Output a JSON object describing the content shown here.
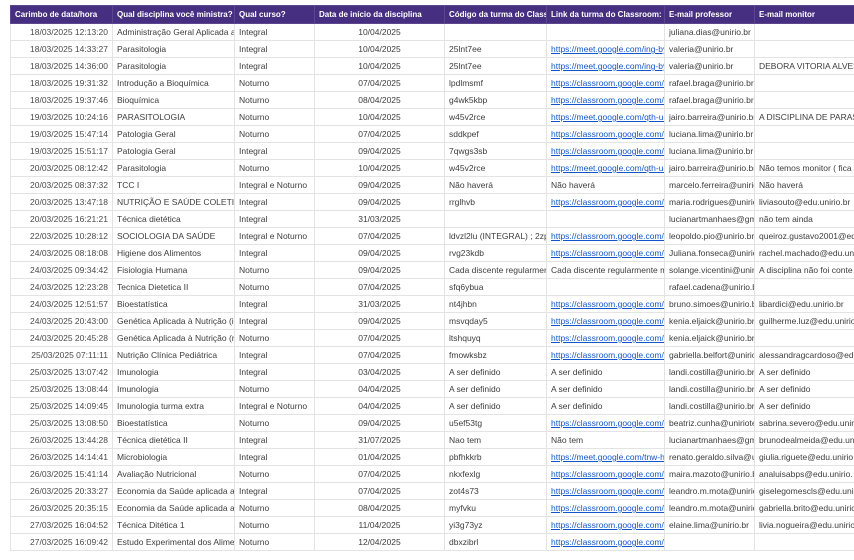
{
  "colors": {
    "header_bg": "#462f80",
    "header_text": "#ffffff",
    "grid_line": "#e3e3e3",
    "body_text": "#3d3d3d",
    "link_text": "#1155cc"
  },
  "table": {
    "columns": [
      "Carimbo de data/hora",
      "Qual disciplina você ministra?",
      "Qual curso?",
      "Data de início da disciplina",
      "Código da turma do Classroom:",
      "Link da turma do Classroom:",
      "E-mail professor",
      "E-mail monitor"
    ],
    "rows": [
      [
        "18/03/2025 12:13:20",
        "Administração Geral Aplicada a Nutr",
        "Integral",
        "10/04/2025",
        "",
        "",
        "juliana.dias@unirio.br",
        ""
      ],
      [
        "18/03/2025 14:33:27",
        "Parasitologia",
        "Integral",
        "10/04/2025",
        "25lnt7ee",
        "https://meet.google.com/ing-bysp-",
        "valeria@unirio.br",
        ""
      ],
      [
        "18/03/2025 14:36:00",
        "Parasitologia",
        "Integral",
        "10/04/2025",
        "25lnt7ee",
        "https://meet.google.com/ing-bysp-",
        "valeria@unirio.br",
        "DEBORA VITORIA ALVES"
      ],
      [
        "18/03/2025 19:31:32",
        "Introdução a Bioquímica",
        "Noturno",
        "07/04/2025",
        "lpdlmsmf",
        "https://classroom.google.com/c/N",
        "rafael.braga@unirio.br",
        ""
      ],
      [
        "18/03/2025 19:37:46",
        "Bioquímica",
        "Noturno",
        "08/04/2025",
        "g4wk5kbp",
        "https://classroom.google.com/c/N",
        "rafael.braga@unirio.br",
        ""
      ],
      [
        "19/03/2025 10:24:16",
        "PARASITOLOGIA",
        "Noturno",
        "10/04/2025",
        "w45v2rce",
        "https://meet.google.com/qth-uqun",
        "jairo.barreira@unirio.br",
        "A DISCIPLINA DE PARAS"
      ],
      [
        "19/03/2025 15:47:14",
        "Patologia Geral",
        "Noturno",
        "07/04/2025",
        "sddkpef",
        "https://classroom.google.com/c/N",
        "luciana.lima@unirio.br",
        ""
      ],
      [
        "19/03/2025 15:51:17",
        "Patologia Geral",
        "Integral",
        "09/04/2025",
        "7qwgs3sb",
        "https://classroom.google.com/c/N",
        "luciana.lima@unirio.br",
        ""
      ],
      [
        "20/03/2025 08:12:42",
        "Parasitologia",
        "Noturno",
        "10/04/2025",
        "w45v2rce",
        "https://meet.google.com/qth-uqun",
        "jairo.barreira@unirio.br",
        "Não temos monitor ( fica"
      ],
      [
        "20/03/2025 08:37:32",
        "TCC I",
        "Integral e Noturno",
        "09/04/2025",
        "Não haverá",
        "Não haverá",
        "marcelo.ferreira@unirio.b",
        "Não haverá"
      ],
      [
        "20/03/2025 13:47:18",
        "NUTRIÇÃO E SAÚDE COLETIVA",
        "Integral",
        "09/04/2025",
        "rrglhvb",
        "https://classroom.google.com/c/N",
        "maria.rodrigues@unirio.b",
        "liviasouto@edu.unirio.br"
      ],
      [
        "20/03/2025 16:21:21",
        "Técnica dietética",
        "Integral",
        "31/03/2025",
        "",
        "",
        "lucianartmanhaes@gma",
        "não tem ainda"
      ],
      [
        "22/03/2025 10:28:12",
        "SOCIOLOGIA DA SAÚDE",
        "Integral e Noturno",
        "07/04/2025",
        "ldvzl2lu (INTEGRAL) ; 2zplrv6s (NOTUF",
        "https://classroom.google.com/c/N",
        "leopoldo.pio@unirio.br",
        "queiroz.gustavo2001@ed"
      ],
      [
        "24/03/2025 08:18:08",
        "Higiene dos Alimentos",
        "Integral",
        "09/04/2025",
        "rvg23kdb",
        "https://classroom.google.com/c/N",
        "Juliana.fonseca@unirio.t",
        "rachel.machado@edu.uni"
      ],
      [
        "24/03/2025 09:34:42",
        "Fisiologia Humana",
        "Noturno",
        "09/04/2025",
        "Cada discente regularmente matricula",
        "Cada discente regularmente matric",
        "solange.vicentini@unirio",
        "A disciplina não foi conte"
      ],
      [
        "24/03/2025 12:23:28",
        "Tecnica Dietetica II",
        "Noturno",
        "07/04/2025",
        "sfq6ybua",
        "",
        "rafael.cadena@unirio.br",
        ""
      ],
      [
        "24/03/2025 12:51:57",
        "Bioestatística",
        "Integral",
        "31/03/2025",
        "nt4jhbn",
        "https://classroom.google.com/c/N",
        "bruno.simoes@unirio.br",
        "libardici@edu.unirio.br"
      ],
      [
        "24/03/2025 20:43:00",
        "Genética Aplicada à Nutrição (integ",
        "Integral",
        "09/04/2025",
        "msvqday5",
        "https://classroom.google.com/c/N",
        "kenia.eljaick@unirio.br",
        "guilherme.luz@edu.unirio"
      ],
      [
        "24/03/2025 20:45:28",
        "Genética Aplicada à Nutrição (notur",
        "Noturno",
        "07/04/2025",
        "ltshquyq",
        "https://classroom.google.com/c/N",
        "kenia.eljaick@unirio.br",
        ""
      ],
      [
        "25/03/2025 07:11:11",
        "Nutrição Clínica Pediátrica",
        "Integral",
        "07/04/2025",
        "fmowksbz",
        "https://classroom.google.com/c/N",
        "gabriella.belfort@unirio.br",
        "alessandragcardoso@ed"
      ],
      [
        "25/03/2025 13:07:42",
        "Imunologia",
        "Integral",
        "03/04/2025",
        "A ser definido",
        "A ser definido",
        "landi.costilla@unirio.br",
        "A ser definido"
      ],
      [
        "25/03/2025 13:08:44",
        "Imunologia",
        "Noturno",
        "04/04/2025",
        "A ser definido",
        "A ser definido",
        "landi.costilla@unirio.br",
        "A ser definido"
      ],
      [
        "25/03/2025 14:09:45",
        "Imunologia  turma extra",
        "Integral e Noturno",
        "04/04/2025",
        "A ser definido",
        "A ser definido",
        "landi.costilla@unirio.br",
        "A ser definido"
      ],
      [
        "25/03/2025 13:08:50",
        "Bioestatística",
        "Noturno",
        "09/04/2025",
        "u5ef53tg",
        "https://classroom.google.com/c/N",
        "beatriz.cunha@uniriotec.",
        "sabrina.severo@edu.unir"
      ],
      [
        "26/03/2025 13:44:28",
        "Técnica dietética II",
        "Integral",
        "31/07/2025",
        "Nao tem",
        "Não tem",
        "lucianartmanhaes@gma",
        "brunodealmeida@edu.un"
      ],
      [
        "26/03/2025 14:14:41",
        "Microbiologia",
        "Integral",
        "01/04/2025",
        "pbfhkkrb",
        "https://meet.google.com/tnw-hecn",
        "renato.geraldo.silva@uni",
        "giulia.riguete@edu.unirio"
      ],
      [
        "26/03/2025 15:41:14",
        "Avaliação Nutricional",
        "Noturno",
        "07/04/2025",
        "nkxfexlg",
        "https://classroom.google.com/c/N",
        "maira.mazoto@unirio.br",
        "analuisabps@edu.unirio."
      ],
      [
        "26/03/2025 20:33:27",
        "Economia da Saúde aplicada a Nutri",
        "Integral",
        "07/04/2025",
        "zot4s73",
        "https://classroom.google.com/c/N",
        "leandro.m.mota@unirio.l",
        "giselegomescls@edu.uni"
      ],
      [
        "26/03/2025 20:35:15",
        "Economia da Saúde aplicada a Nutr",
        "Noturno",
        "08/04/2025",
        "myfvku",
        "https://classroom.google.com/c/N",
        "leandro.m.mota@unirio.l",
        "gabriella.brito@edu.uniric"
      ],
      [
        "27/03/2025 16:04:52",
        "Técnica Ditética 1",
        "Noturno",
        "11/04/2025",
        "yi3g73yz",
        "https://classroom.google.com/c/N",
        "elaine.lima@unirio.br",
        "livia.nogueira@edu.unirio"
      ],
      [
        "27/03/2025 16:09:42",
        "Estudo Experimental dos Alimentos",
        "Noturno",
        "12/04/2025",
        "dbxzibrl",
        "https://classroom.google.com/c/N",
        "",
        ""
      ]
    ]
  }
}
